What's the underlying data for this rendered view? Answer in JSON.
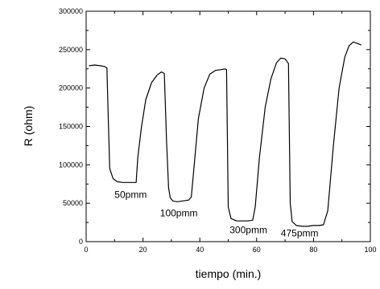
{
  "chart_data": {
    "type": "line",
    "xlabel": "tiempo (min.)",
    "ylabel": "R (ohm)",
    "xlim": [
      0,
      100
    ],
    "ylim": [
      0,
      300000
    ],
    "x_ticks": [
      0,
      20,
      40,
      60,
      80,
      100
    ],
    "y_ticks": [
      0,
      50000,
      100000,
      150000,
      200000,
      250000,
      300000
    ],
    "x_tick_labels": [
      "0",
      "20",
      "40",
      "60",
      "80",
      "100"
    ],
    "y_tick_labels": [
      "0",
      "50000",
      "100000",
      "150000",
      "200000",
      "250000",
      "300000"
    ],
    "grid": false,
    "line_color": "#000000",
    "series": [
      {
        "x": [
          1,
          3,
          5,
          6.5,
          7.3,
          7.8,
          8.3,
          9.5,
          11,
          13,
          15,
          17,
          17.6,
          18.2,
          19.5,
          21,
          23,
          25,
          26.5,
          27.5,
          28.3,
          29,
          29.6,
          30.5,
          32,
          34,
          36,
          37,
          37.8,
          39.5,
          41.5,
          43.5,
          45.5,
          47.5,
          48.8,
          49.4,
          50,
          51,
          53,
          55,
          57,
          58.6,
          59.5,
          61,
          63,
          65,
          67,
          68.5,
          70,
          71.2,
          71.8,
          72.5,
          74,
          76,
          78,
          80,
          82,
          83.5,
          85,
          87,
          89,
          91,
          92.5,
          94,
          95.5,
          96.8
        ],
        "y": [
          229000,
          230000,
          229000,
          228000,
          226000,
          160000,
          95000,
          82000,
          78000,
          77000,
          77000,
          77000,
          77000,
          110000,
          150000,
          185000,
          207000,
          217000,
          221000,
          219000,
          130000,
          70000,
          57000,
          53000,
          52000,
          53000,
          54000,
          58000,
          90000,
          160000,
          200000,
          218000,
          223000,
          224000,
          225000,
          224000,
          45000,
          30000,
          27000,
          27000,
          27000,
          28000,
          45000,
          110000,
          175000,
          212000,
          233000,
          239000,
          238000,
          232000,
          50000,
          26000,
          21000,
          20000,
          20000,
          21000,
          21000,
          22000,
          40000,
          125000,
          200000,
          240000,
          255000,
          260000,
          258000,
          256000
        ]
      }
    ],
    "annotations": [
      {
        "text": "50pmm",
        "x": 10,
        "y": 57000
      },
      {
        "text": "100pmm",
        "x": 26,
        "y": 33000
      },
      {
        "text": "300pmm",
        "x": 50.5,
        "y": 11000
      },
      {
        "text": "475pmm",
        "x": 68.5,
        "y": 7000
      }
    ]
  }
}
